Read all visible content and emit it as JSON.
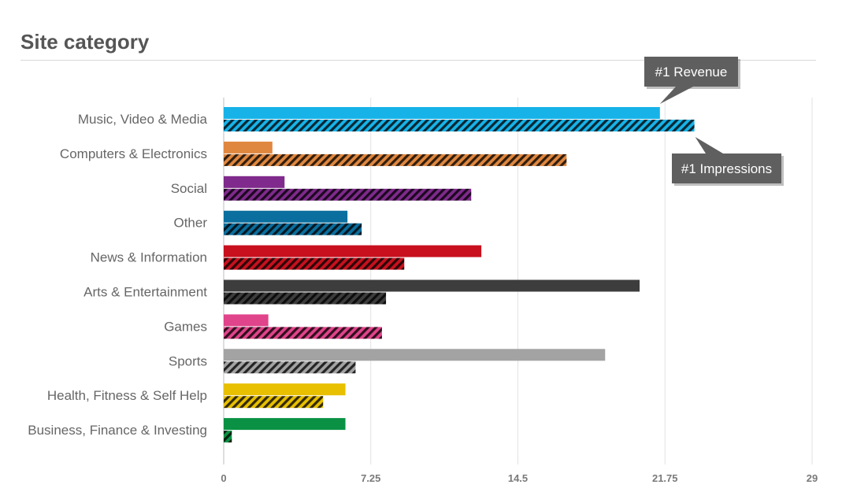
{
  "title": "Site category",
  "chart_data": {
    "type": "bar",
    "orientation": "horizontal",
    "title": "Site category",
    "categories": [
      "Music, Video & Media",
      "Computers & Electronics",
      "Social",
      "Other",
      "News & Information",
      "Arts & Entertainment",
      "Games",
      "Sports",
      "Health, Fitness & Self Help",
      "Business, Finance & Investing"
    ],
    "colors": [
      "#17b3e8",
      "#e0873f",
      "#7f2a8c",
      "#0a6f9e",
      "#c8101e",
      "#3d3d3d",
      "#e0448a",
      "#a3a3a3",
      "#e8c000",
      "#0a9144"
    ],
    "series": [
      {
        "style": "solid",
        "values": [
          21.5,
          2.4,
          3.0,
          6.1,
          12.7,
          20.5,
          2.2,
          18.8,
          6.0,
          6.0
        ]
      },
      {
        "style": "hatched",
        "values": [
          23.2,
          16.9,
          12.2,
          6.8,
          8.9,
          8.0,
          7.8,
          6.5,
          4.9,
          0.4
        ]
      }
    ],
    "xlim": [
      0,
      29
    ],
    "xticks": [
      "0",
      "7.25",
      "14.5",
      "21.75",
      "29"
    ],
    "xtick_values": [
      0,
      7.25,
      14.5,
      21.75,
      29
    ],
    "grid": true,
    "annotations": [
      {
        "text": "#1 Revenue",
        "series": 0,
        "category": 0
      },
      {
        "text": "#1 Impressions",
        "series": 1,
        "category": 0
      }
    ]
  }
}
